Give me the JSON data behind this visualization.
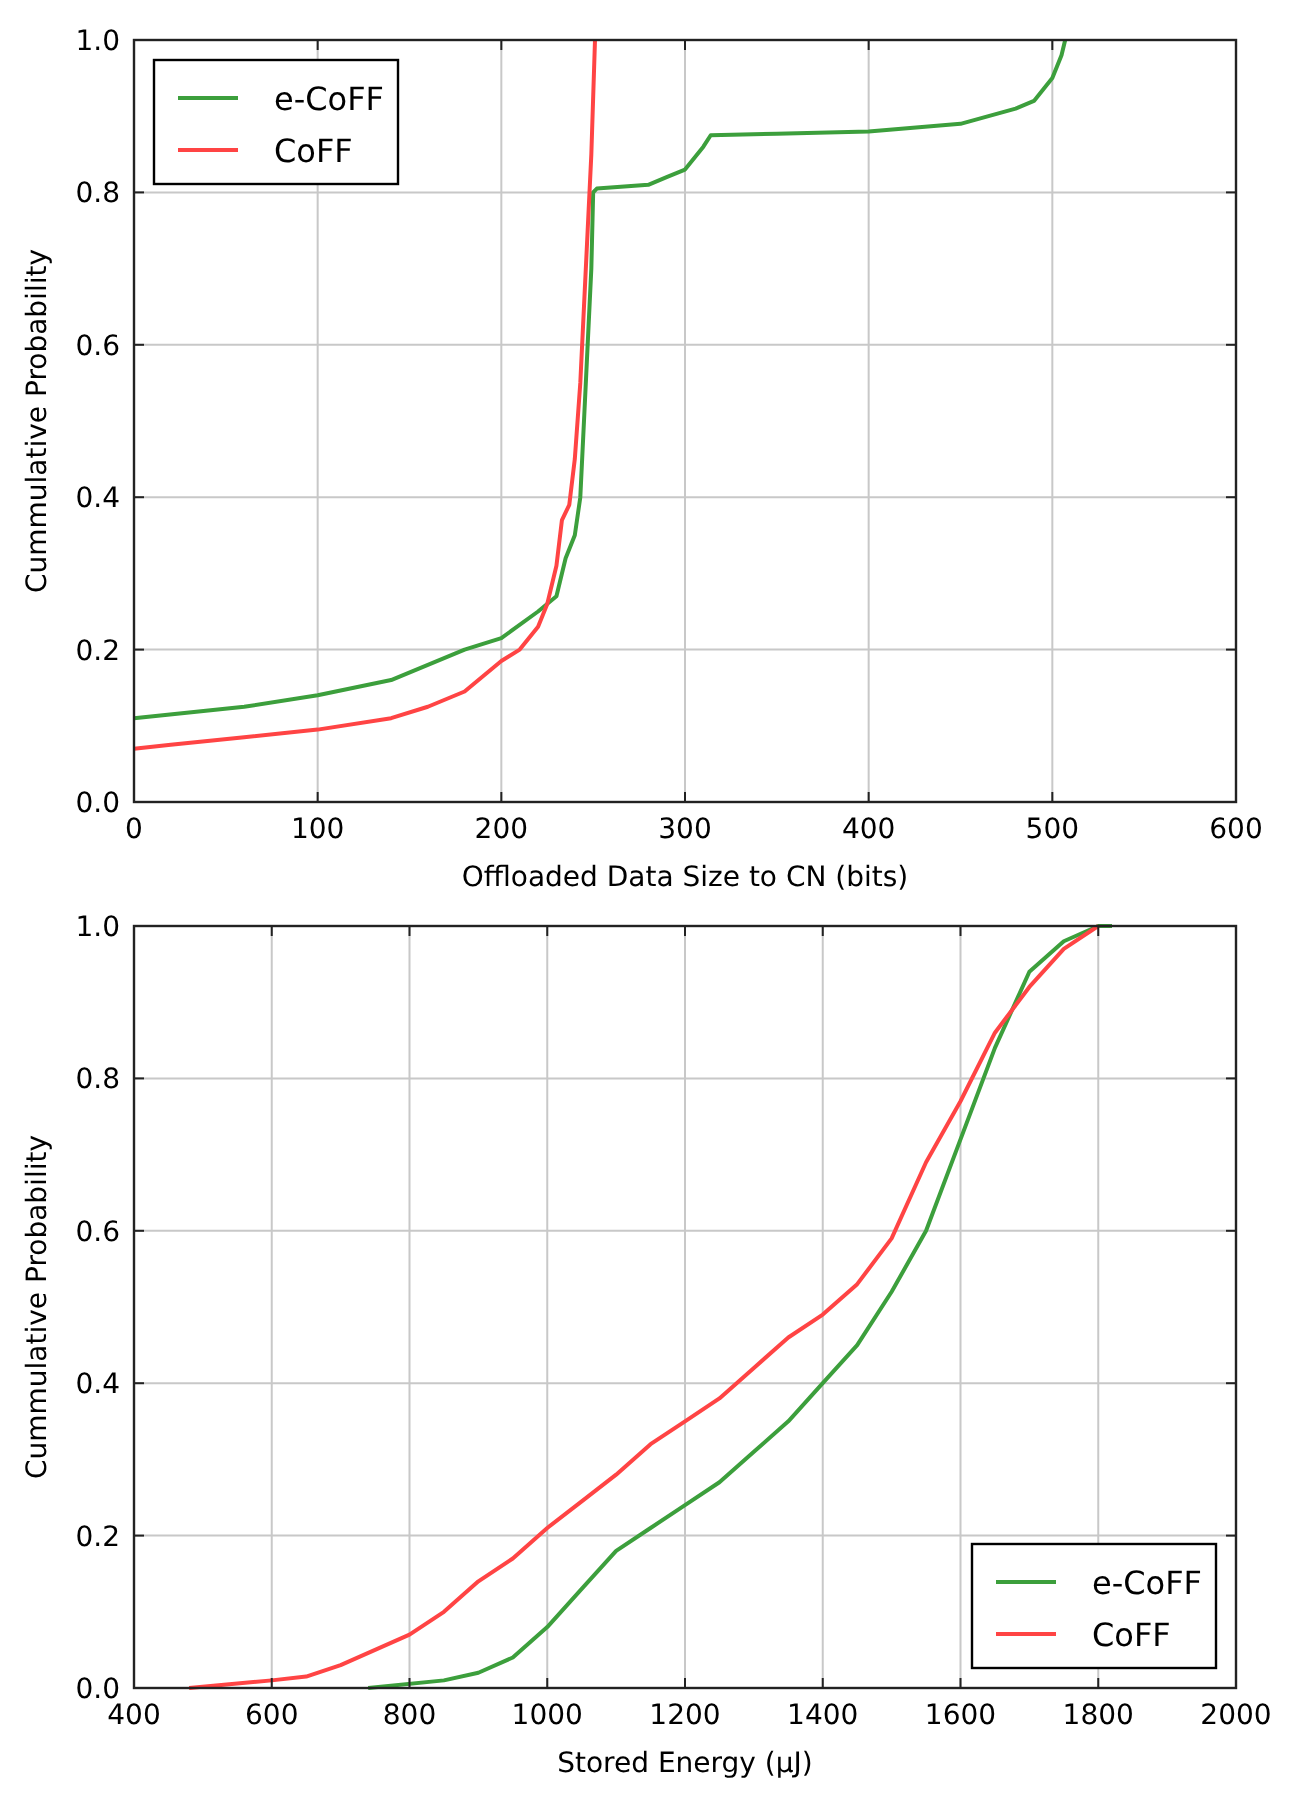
{
  "chart_data": [
    {
      "type": "line",
      "xlabel": "Offloaded Data Size to CN (bits)",
      "ylabel": "Cummulative Probability",
      "xlim": [
        0,
        600
      ],
      "ylim": [
        0,
        1
      ],
      "xticks": [
        0,
        100,
        200,
        300,
        400,
        500,
        600
      ],
      "yticks": [
        {
          "value": 0,
          "label": "0.0"
        },
        {
          "value": 0.2,
          "label": "0.2"
        },
        {
          "value": 0.4,
          "label": "0.4"
        },
        {
          "value": 0.6,
          "label": "0.6"
        },
        {
          "value": 0.8,
          "label": "0.8"
        },
        {
          "value": 1,
          "label": "1.0"
        }
      ],
      "grid": true,
      "legend": "top left",
      "line_style": "solid",
      "marker": "none",
      "series": [
        {
          "name": "e-CoFF",
          "color": "#3c9f3c",
          "x": [
            0,
            60,
            100,
            140,
            180,
            200,
            220,
            230,
            235,
            240,
            243,
            245,
            247,
            249,
            250,
            252,
            280,
            290,
            300,
            310,
            314,
            350,
            400,
            450,
            480,
            490,
            500,
            505,
            507
          ],
          "values": [
            0.11,
            0.125,
            0.14,
            0.16,
            0.2,
            0.215,
            0.25,
            0.27,
            0.32,
            0.35,
            0.4,
            0.5,
            0.6,
            0.7,
            0.8,
            0.805,
            0.81,
            0.82,
            0.83,
            0.86,
            0.875,
            0.877,
            0.88,
            0.89,
            0.91,
            0.92,
            0.95,
            0.98,
            1.0
          ]
        },
        {
          "name": "CoFF",
          "color": "#ff4444",
          "x": [
            0,
            20,
            60,
            100,
            140,
            160,
            180,
            200,
            210,
            220,
            225,
            230,
            233,
            237,
            240,
            243,
            245,
            247,
            249,
            251
          ],
          "values": [
            0.07,
            0.075,
            0.085,
            0.095,
            0.11,
            0.125,
            0.145,
            0.185,
            0.2,
            0.23,
            0.26,
            0.31,
            0.37,
            0.39,
            0.45,
            0.55,
            0.65,
            0.75,
            0.85,
            1.0
          ]
        }
      ]
    },
    {
      "type": "line",
      "xlabel": "Stored Energy (μJ)",
      "ylabel": "Cummulative Probability",
      "xlim": [
        400,
        2000
      ],
      "ylim": [
        0,
        1
      ],
      "xticks": [
        400,
        600,
        800,
        1000,
        1200,
        1400,
        1600,
        1800,
        2000
      ],
      "yticks": [
        {
          "value": 0,
          "label": "0.0"
        },
        {
          "value": 0.2,
          "label": "0.2"
        },
        {
          "value": 0.4,
          "label": "0.4"
        },
        {
          "value": 0.6,
          "label": "0.6"
        },
        {
          "value": 0.8,
          "label": "0.8"
        },
        {
          "value": 1,
          "label": "1.0"
        }
      ],
      "grid": true,
      "legend": "bottom right",
      "line_style": "solid",
      "marker": "none",
      "series": [
        {
          "name": "e-CoFF",
          "color": "#3c9f3c",
          "x": [
            740,
            850,
            900,
            950,
            1000,
            1050,
            1100,
            1150,
            1200,
            1250,
            1300,
            1350,
            1400,
            1450,
            1500,
            1550,
            1600,
            1650,
            1700,
            1750,
            1800,
            1820
          ],
          "values": [
            0,
            0.01,
            0.02,
            0.04,
            0.08,
            0.13,
            0.18,
            0.21,
            0.24,
            0.27,
            0.31,
            0.35,
            0.4,
            0.45,
            0.52,
            0.6,
            0.72,
            0.84,
            0.94,
            0.98,
            1.0,
            1.0
          ]
        },
        {
          "name": "CoFF",
          "color": "#ff4444",
          "x": [
            480,
            600,
            650,
            700,
            750,
            800,
            850,
            900,
            950,
            1000,
            1050,
            1100,
            1150,
            1200,
            1250,
            1300,
            1350,
            1400,
            1450,
            1500,
            1550,
            1600,
            1650,
            1700,
            1750,
            1800
          ],
          "values": [
            0,
            0.01,
            0.015,
            0.03,
            0.05,
            0.07,
            0.1,
            0.14,
            0.17,
            0.21,
            0.245,
            0.28,
            0.32,
            0.35,
            0.38,
            0.42,
            0.46,
            0.49,
            0.53,
            0.59,
            0.69,
            0.77,
            0.86,
            0.92,
            0.97,
            1.0
          ]
        }
      ]
    }
  ]
}
